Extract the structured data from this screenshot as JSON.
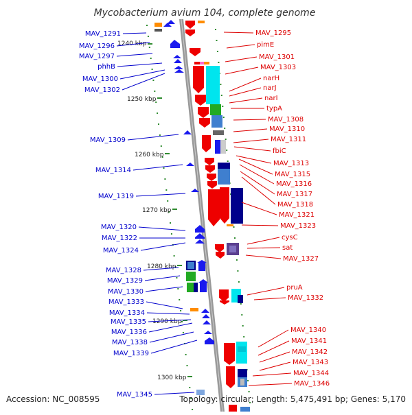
{
  "title": "Mycobacterium avium 104, complete genome",
  "footer": {
    "accession": "Accession: NC_008595",
    "topology": "Topology: circular; Length: 5,475,491 bp; Genes: 5,170"
  },
  "colors": {
    "left_label": "#0000cc",
    "right_label": "#dd0000",
    "kbp_tick": "#2e8b2e",
    "backbone": "#999999"
  },
  "kbp_labels": [
    "1240 kbp",
    "1250 kbp",
    "1260 kbp",
    "1270 kbp",
    "1280 kbp",
    "1290 kbp",
    "1300 kbp"
  ],
  "left_labels": [
    "MAV_1291",
    "MAV_1296",
    "MAV_1297",
    "phhB",
    "MAV_1300",
    "MAV_1302",
    "MAV_1309",
    "MAV_1314",
    "MAV_1319",
    "MAV_1320",
    "MAV_1322",
    "MAV_1324",
    "MAV_1328",
    "MAV_1329",
    "MAV_1330",
    "MAV_1333",
    "MAV_1334",
    "MAV_1335",
    "MAV_1336",
    "MAV_1338",
    "MAV_1339",
    "MAV_1345"
  ],
  "right_labels": [
    "MAV_1295",
    "pimE",
    "MAV_1301",
    "MAV_1303",
    "narH",
    "narJ",
    "narI",
    "typA",
    "MAV_1308",
    "MAV_1310",
    "MAV_1311",
    "fbiC",
    "MAV_1313",
    "MAV_1315",
    "MAV_1316",
    "MAV_1317",
    "MAV_1318",
    "MAV_1321",
    "MAV_1323",
    "cysC",
    "sat",
    "MAV_1327",
    "pruA",
    "MAV_1332",
    "MAV_1340",
    "MAV_1341",
    "MAV_1342",
    "MAV_1343",
    "MAV_1344",
    "MAV_1346"
  ]
}
